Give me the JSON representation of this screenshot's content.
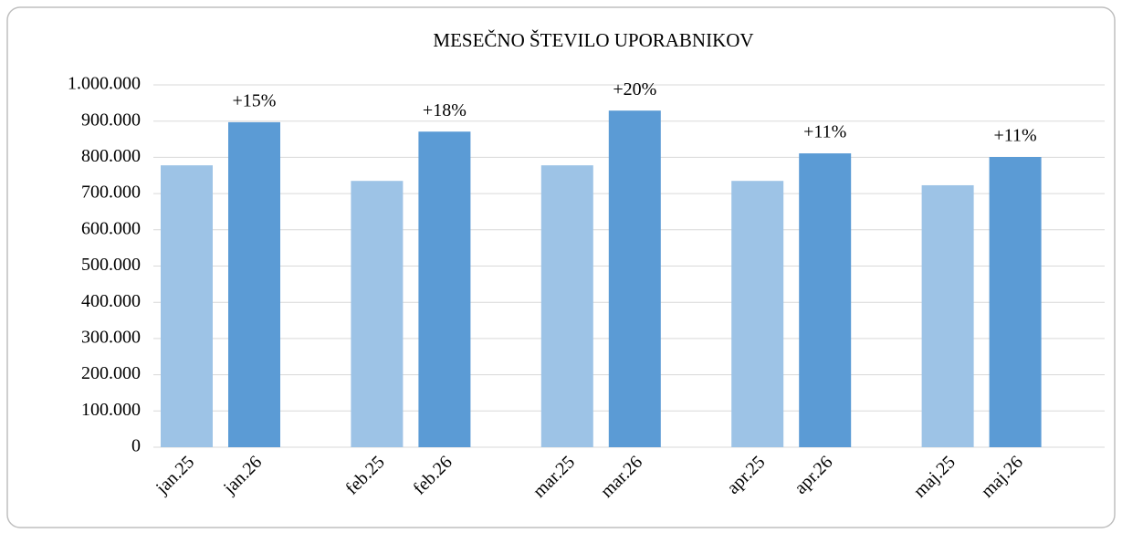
{
  "chart_data": {
    "type": "bar",
    "title": "MESEČNO ŠTEVILO UPORABNIKOV",
    "colors": [
      "#9dc3e6",
      "#5b9bd5"
    ],
    "groups": [
      {
        "labels": [
          "jan.25",
          "jan.26"
        ],
        "values": [
          778000,
          897000
        ],
        "annotation": "+15%"
      },
      {
        "labels": [
          "feb.25",
          "feb.26"
        ],
        "values": [
          735000,
          871000
        ],
        "annotation": "+18%"
      },
      {
        "labels": [
          "mar.25",
          "mar.26"
        ],
        "values": [
          778000,
          929000
        ],
        "annotation": "+20%"
      },
      {
        "labels": [
          "apr.25",
          "apr.26"
        ],
        "values": [
          735000,
          811000
        ],
        "annotation": "+11%"
      },
      {
        "labels": [
          "maj.25",
          "maj.26"
        ],
        "values": [
          723000,
          801000
        ],
        "annotation": "+11%"
      }
    ],
    "ylim": [
      0,
      1000000
    ],
    "yticks": [
      0,
      {
        "value": 100000,
        "label": "100.000"
      },
      {
        "value": 200000,
        "label": "200.000"
      },
      {
        "value": 300000,
        "label": "300.000"
      },
      {
        "value": 400000,
        "label": "400.000"
      },
      {
        "value": 500000,
        "label": "500.000"
      },
      {
        "value": 600000,
        "label": "600.000"
      },
      {
        "value": 700000,
        "label": "700.000"
      },
      {
        "value": 800000,
        "label": "800.000"
      },
      {
        "value": 900000,
        "label": "900.000"
      },
      {
        "value": 1000000,
        "label": "1.000.000"
      }
    ],
    "grid": true
  }
}
